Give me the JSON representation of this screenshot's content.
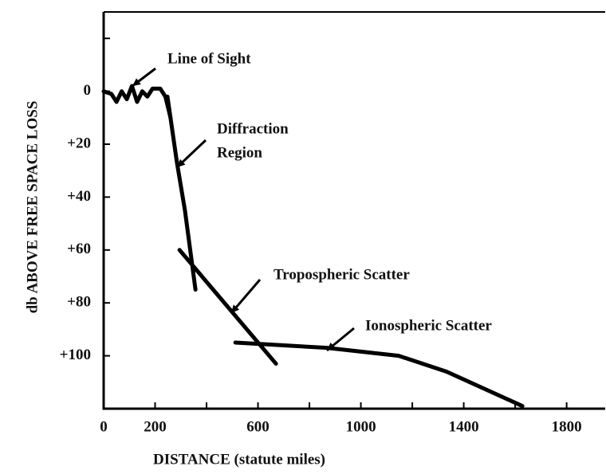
{
  "chart_data": {
    "type": "line",
    "x_label": "DISTANCE (statute miles)",
    "y_label": "db ABOVE FREE SPACE LOSS",
    "xlim": [
      0,
      1950
    ],
    "ylim": [
      120,
      -30
    ],
    "xticks": [
      0,
      200,
      600,
      1000,
      1400,
      1800
    ],
    "x_minor_ticks": [
      400,
      800,
      1200,
      1600
    ],
    "yticks": [
      0,
      {
        "value": 20,
        "label": "+20"
      },
      {
        "value": 40,
        "label": "+40"
      },
      {
        "value": 60,
        "label": "+60"
      },
      {
        "value": 80,
        "label": "+80"
      },
      {
        "value": 100,
        "label": "+100"
      }
    ],
    "y_minor_ticks": [
      -20,
      120
    ],
    "series": [
      {
        "color": "#000000",
        "x": [
          0,
          30,
          50,
          70,
          90,
          110,
          130,
          150,
          170,
          190,
          220,
          240,
          260
        ],
        "values": [
          0,
          1,
          4,
          0,
          3,
          -2,
          4,
          0,
          2,
          -1,
          -1,
          2,
          10
        ]
      },
      {
        "color": "#000000",
        "x": [
          248,
          285,
          316,
          357
        ],
        "values": [
          2,
          27,
          45,
          75
        ]
      },
      {
        "color": "#000000",
        "x": [
          295,
          670
        ],
        "values": [
          60,
          103
        ]
      },
      {
        "color": "#000000",
        "x": [
          512,
          868,
          1147,
          1333,
          1628
        ],
        "values": [
          95,
          97,
          100,
          106,
          119
        ]
      }
    ],
    "annotations": [
      {
        "lines": [
          "Line of Sight"
        ]
      },
      {
        "lines": [
          "Diffraction",
          "Region"
        ]
      },
      {
        "lines": [
          "Tropospheric Scatter"
        ]
      },
      {
        "lines": [
          "Ionospheric Scatter"
        ]
      }
    ]
  }
}
